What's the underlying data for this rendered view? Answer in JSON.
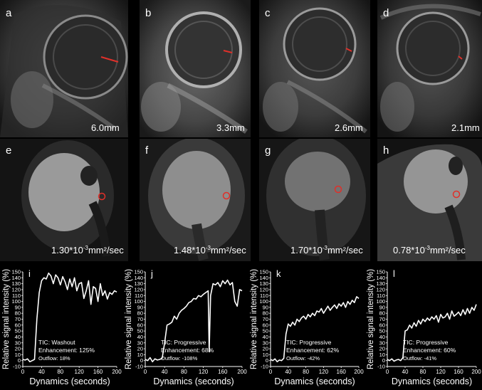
{
  "mri_panels": [
    {
      "label": "a",
      "measurement": "6.0mm"
    },
    {
      "label": "b",
      "measurement": "3.3mm"
    },
    {
      "label": "c",
      "measurement": "2.6mm"
    },
    {
      "label": "d",
      "measurement": "2.1mm"
    }
  ],
  "adc_panels": [
    {
      "label": "e",
      "value": "1.30*10",
      "exp": "-3",
      "unit": "mm²/sec"
    },
    {
      "label": "f",
      "value": "1.48*10",
      "exp": "-3",
      "unit": "mm²/sec"
    },
    {
      "label": "g",
      "value": "1.70*10",
      "exp": "-3",
      "unit": "mm²/sec"
    },
    {
      "label": "h",
      "value": "0.78*10",
      "exp": "-3",
      "unit": "mm²/sec"
    }
  ],
  "colors": {
    "marker": "#e0302a",
    "background": "#000000",
    "curve": "#ffffff"
  },
  "chart_data": [
    {
      "type": "line",
      "label": "i",
      "ylabel": "Relative signal intensity (%)",
      "xlabel": "Dynamics (seconds)",
      "ylim": [
        -10,
        150
      ],
      "xlim": [
        0,
        200
      ],
      "yticks": [
        -10,
        0,
        10,
        20,
        30,
        40,
        50,
        60,
        70,
        80,
        90,
        100,
        110,
        120,
        130,
        140,
        150
      ],
      "xticks": [
        0,
        40,
        80,
        120,
        160,
        200
      ],
      "annotation": [
        "TIC: Washout",
        "Enhancement: 125%",
        "Outflow: 18%"
      ],
      "x": [
        0,
        5,
        10,
        15,
        20,
        25,
        30,
        35,
        40,
        45,
        50,
        55,
        60,
        65,
        70,
        75,
        80,
        85,
        90,
        95,
        100,
        105,
        110,
        115,
        120,
        125,
        130,
        135,
        140,
        145,
        150,
        155,
        160,
        165,
        170,
        175,
        180,
        185,
        190,
        195,
        200
      ],
      "y": [
        2,
        1,
        3,
        -2,
        0,
        2,
        70,
        115,
        135,
        140,
        138,
        148,
        143,
        130,
        145,
        140,
        128,
        142,
        133,
        120,
        138,
        125,
        140,
        118,
        130,
        132,
        105,
        118,
        135,
        95,
        125,
        122,
        100,
        130,
        110,
        118,
        104,
        115,
        112,
        118,
        116
      ]
    },
    {
      "type": "line",
      "label": "j",
      "ylabel": "Relative signal intensity (%)",
      "xlabel": "Dynamics (seconds)",
      "ylim": [
        -10,
        150
      ],
      "xlim": [
        0,
        200
      ],
      "yticks": [
        -10,
        0,
        10,
        20,
        30,
        40,
        50,
        60,
        70,
        80,
        90,
        100,
        110,
        120,
        130,
        140,
        150
      ],
      "xticks": [
        0,
        40,
        80,
        120,
        160,
        200
      ],
      "annotation": [
        "TIC: Progressive",
        "Enhancement: 68%",
        "Outflow: -108%"
      ],
      "x": [
        0,
        5,
        10,
        15,
        20,
        25,
        30,
        35,
        40,
        45,
        50,
        55,
        60,
        65,
        70,
        75,
        80,
        85,
        90,
        95,
        100,
        105,
        110,
        115,
        120,
        125,
        130,
        132,
        135,
        140,
        145,
        150,
        155,
        160,
        165,
        170,
        175,
        180,
        185,
        190,
        195,
        200
      ],
      "y": [
        2,
        0,
        5,
        -2,
        3,
        1,
        2,
        4,
        30,
        60,
        62,
        65,
        75,
        70,
        80,
        85,
        88,
        92,
        98,
        100,
        105,
        104,
        110,
        108,
        112,
        115,
        118,
        15,
        110,
        130,
        128,
        132,
        125,
        135,
        130,
        136,
        128,
        132,
        100,
        92,
        120,
        118
      ]
    },
    {
      "type": "line",
      "label": "k",
      "ylabel": "Relative signal intensity (%)",
      "xlabel": "Dynamics (seconds)",
      "ylim": [
        -10,
        150
      ],
      "xlim": [
        0,
        200
      ],
      "yticks": [
        -10,
        0,
        10,
        20,
        30,
        40,
        50,
        60,
        70,
        80,
        90,
        100,
        110,
        120,
        130,
        140,
        150
      ],
      "xticks": [
        0,
        40,
        80,
        120,
        160,
        200
      ],
      "annotation": [
        "TIC: Progressive",
        "Enhancement: 62%",
        "Outflow: -42%"
      ],
      "x": [
        0,
        5,
        10,
        15,
        20,
        25,
        30,
        35,
        40,
        45,
        50,
        55,
        60,
        65,
        70,
        75,
        80,
        85,
        90,
        95,
        100,
        105,
        110,
        115,
        120,
        125,
        130,
        135,
        140,
        145,
        150,
        155,
        160,
        165,
        170,
        175,
        180,
        185,
        190,
        195,
        200
      ],
      "y": [
        2,
        0,
        3,
        -2,
        1,
        0,
        4,
        45,
        62,
        58,
        65,
        60,
        70,
        66,
        72,
        75,
        70,
        78,
        74,
        80,
        76,
        84,
        82,
        88,
        80,
        86,
        92,
        85,
        90,
        94,
        88,
        96,
        92,
        98,
        90,
        100,
        95,
        102,
        98,
        108,
        105
      ]
    },
    {
      "type": "line",
      "label": "l",
      "ylabel": "Relative signal intensity (%)",
      "xlabel": "Dynamics (seconds)",
      "ylim": [
        -10,
        150
      ],
      "xlim": [
        0,
        200
      ],
      "yticks": [
        -10,
        0,
        10,
        20,
        30,
        40,
        50,
        60,
        70,
        80,
        90,
        100,
        110,
        120,
        130,
        140,
        150
      ],
      "xticks": [
        0,
        40,
        80,
        120,
        160,
        200
      ],
      "annotation": [
        "TIC: Progressive",
        "Enhancement: 60%",
        "Outflow: -41%"
      ],
      "x": [
        0,
        5,
        10,
        15,
        20,
        25,
        30,
        35,
        40,
        45,
        50,
        55,
        60,
        65,
        70,
        75,
        80,
        85,
        90,
        95,
        100,
        105,
        110,
        115,
        120,
        125,
        130,
        135,
        140,
        145,
        150,
        155,
        160,
        165,
        170,
        175,
        180,
        185,
        190,
        195,
        200
      ],
      "y": [
        2,
        0,
        3,
        -1,
        1,
        2,
        0,
        5,
        50,
        52,
        60,
        55,
        64,
        58,
        68,
        62,
        70,
        66,
        72,
        68,
        74,
        70,
        76,
        65,
        78,
        72,
        74,
        80,
        70,
        84,
        75,
        78,
        82,
        76,
        86,
        78,
        88,
        80,
        90,
        85,
        95
      ]
    }
  ]
}
